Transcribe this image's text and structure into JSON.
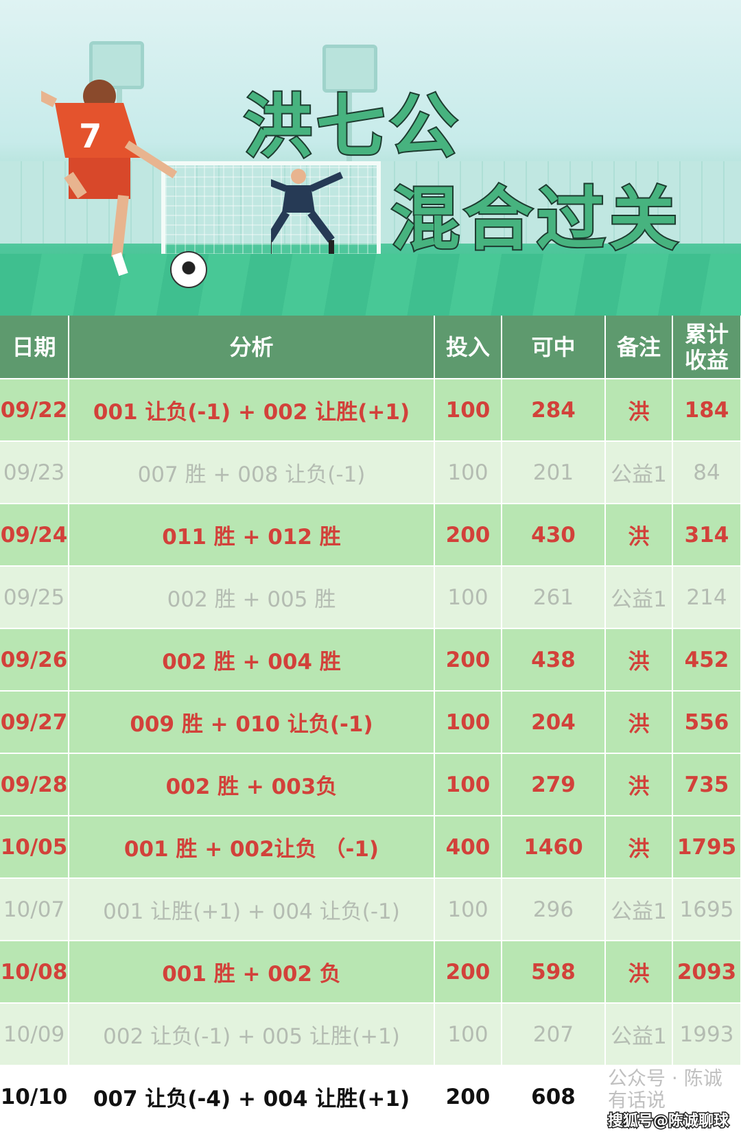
{
  "banner": {
    "title_line1": "洪七公",
    "title_line2": "混合过关",
    "jersey_number": "7"
  },
  "table": {
    "headers": [
      "日期",
      "分析",
      "投入",
      "可中",
      "备注",
      "累计\n收益"
    ],
    "rows": [
      {
        "status": "win",
        "cells": [
          "09/22",
          "001 让负(-1) + 002 让胜(+1)",
          "100",
          "284",
          "洪",
          "184"
        ]
      },
      {
        "status": "loss",
        "cells": [
          "09/23",
          "007 胜 + 008 让负(-1)",
          "100",
          "201",
          "公益1",
          "84"
        ]
      },
      {
        "status": "win",
        "cells": [
          "09/24",
          "011 胜 + 012 胜",
          "200",
          "430",
          "洪",
          "314"
        ]
      },
      {
        "status": "loss",
        "cells": [
          "09/25",
          "002 胜 + 005 胜",
          "100",
          "261",
          "公益1",
          "214"
        ]
      },
      {
        "status": "win",
        "cells": [
          "09/26",
          "002 胜 + 004 胜",
          "200",
          "438",
          "洪",
          "452"
        ]
      },
      {
        "status": "win",
        "cells": [
          "09/27",
          "009 胜 + 010 让负(-1)",
          "100",
          "204",
          "洪",
          "556"
        ]
      },
      {
        "status": "win",
        "cells": [
          "09/28",
          "002 胜 + 003负",
          "100",
          "279",
          "洪",
          "735"
        ]
      },
      {
        "status": "win",
        "cells": [
          "10/05",
          "001 胜 + 002让负 （-1)",
          "400",
          "1460",
          "洪",
          "1795"
        ]
      },
      {
        "status": "loss",
        "cells": [
          "10/07",
          "001 让胜(+1) + 004 让负(-1)",
          "100",
          "296",
          "公益1",
          "1695"
        ]
      },
      {
        "status": "win",
        "cells": [
          "10/08",
          "001 胜 + 002 负",
          "200",
          "598",
          "洪",
          "2093"
        ]
      },
      {
        "status": "loss",
        "cells": [
          "10/09",
          "002 让负(-1) + 005 让胜(+1)",
          "100",
          "207",
          "公益1",
          "1993"
        ]
      },
      {
        "status": "last",
        "cells": [
          "10/10",
          "007 让负(-4) + 004 让胜(+1)",
          "200",
          "608",
          "",
          ""
        ]
      }
    ]
  },
  "colors": {
    "header": "#5e9a6e",
    "win_row": "#b8e6b2",
    "win_text": "#d2413a",
    "loss_row": "#e3f3de",
    "loss_text": "#b4bcb2"
  },
  "watermarks": {
    "wechat": "公众号 · 陈诚有话说",
    "sohu": "搜狐号@陈诚聊球"
  }
}
